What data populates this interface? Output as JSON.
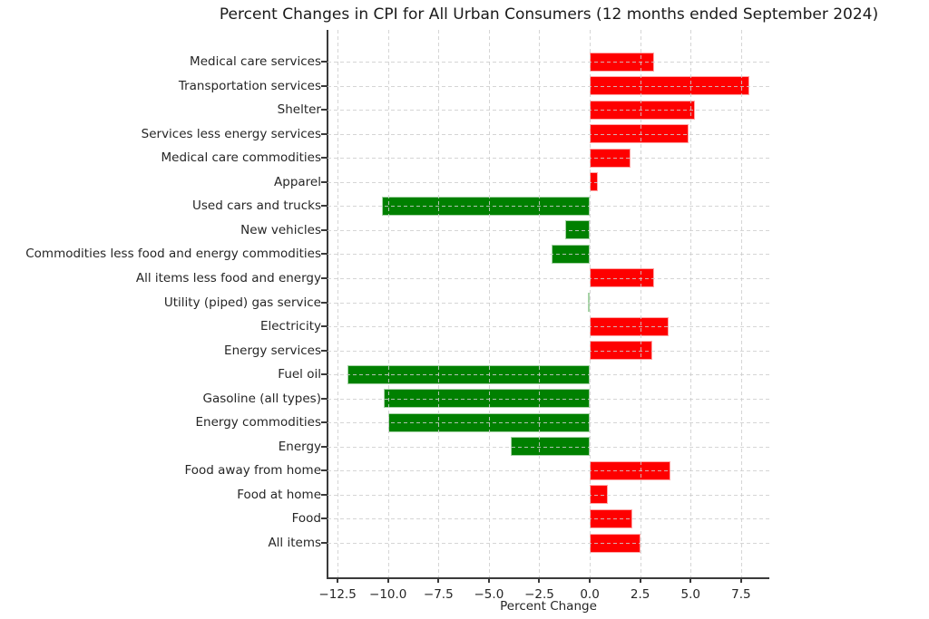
{
  "chart_data": {
    "type": "bar",
    "orientation": "horizontal",
    "title": "Percent Changes in CPI for All Urban Consumers (12 months ended September 2024)",
    "xlabel": "Percent Change",
    "ylabel": "",
    "legend": null,
    "categories_top_to_bottom": [
      "Medical care services",
      "Transportation services",
      "Shelter",
      "Services less energy services",
      "Medical care commodities",
      "Apparel",
      "Used cars and trucks",
      "New vehicles",
      "Commodities less food and energy commodities",
      "All items less food and energy",
      "Utility (piped) gas service",
      "Electricity",
      "Energy services",
      "Fuel oil",
      "Gasoline (all types)",
      "Energy commodities",
      "Energy",
      "Food away from home",
      "Food at home",
      "Food",
      "All items"
    ],
    "values": [
      3.2,
      7.9,
      5.2,
      4.9,
      2.0,
      0.4,
      -10.3,
      -1.2,
      -1.9,
      3.2,
      -0.1,
      3.9,
      3.1,
      -12.0,
      -10.2,
      -10.0,
      -3.9,
      4.0,
      0.9,
      2.1,
      2.5
    ],
    "xlim": [
      -13.0,
      8.9
    ],
    "xticks": [
      -12.5,
      -10.0,
      -7.5,
      -5.0,
      -2.5,
      0.0,
      2.5,
      5.0,
      7.5
    ],
    "xtick_labels": [
      "−12.5",
      "−10.0",
      "−7.5",
      "−5.0",
      "−2.5",
      "0.0",
      "2.5",
      "5.0",
      "7.5"
    ],
    "colors": {
      "positive_bar": "#fe0000",
      "negative_bar": "#008000"
    },
    "grid": {
      "x": true,
      "y": true,
      "style": "dashed",
      "color": "#d3d3d3",
      "drawn_over_bars": true
    }
  }
}
